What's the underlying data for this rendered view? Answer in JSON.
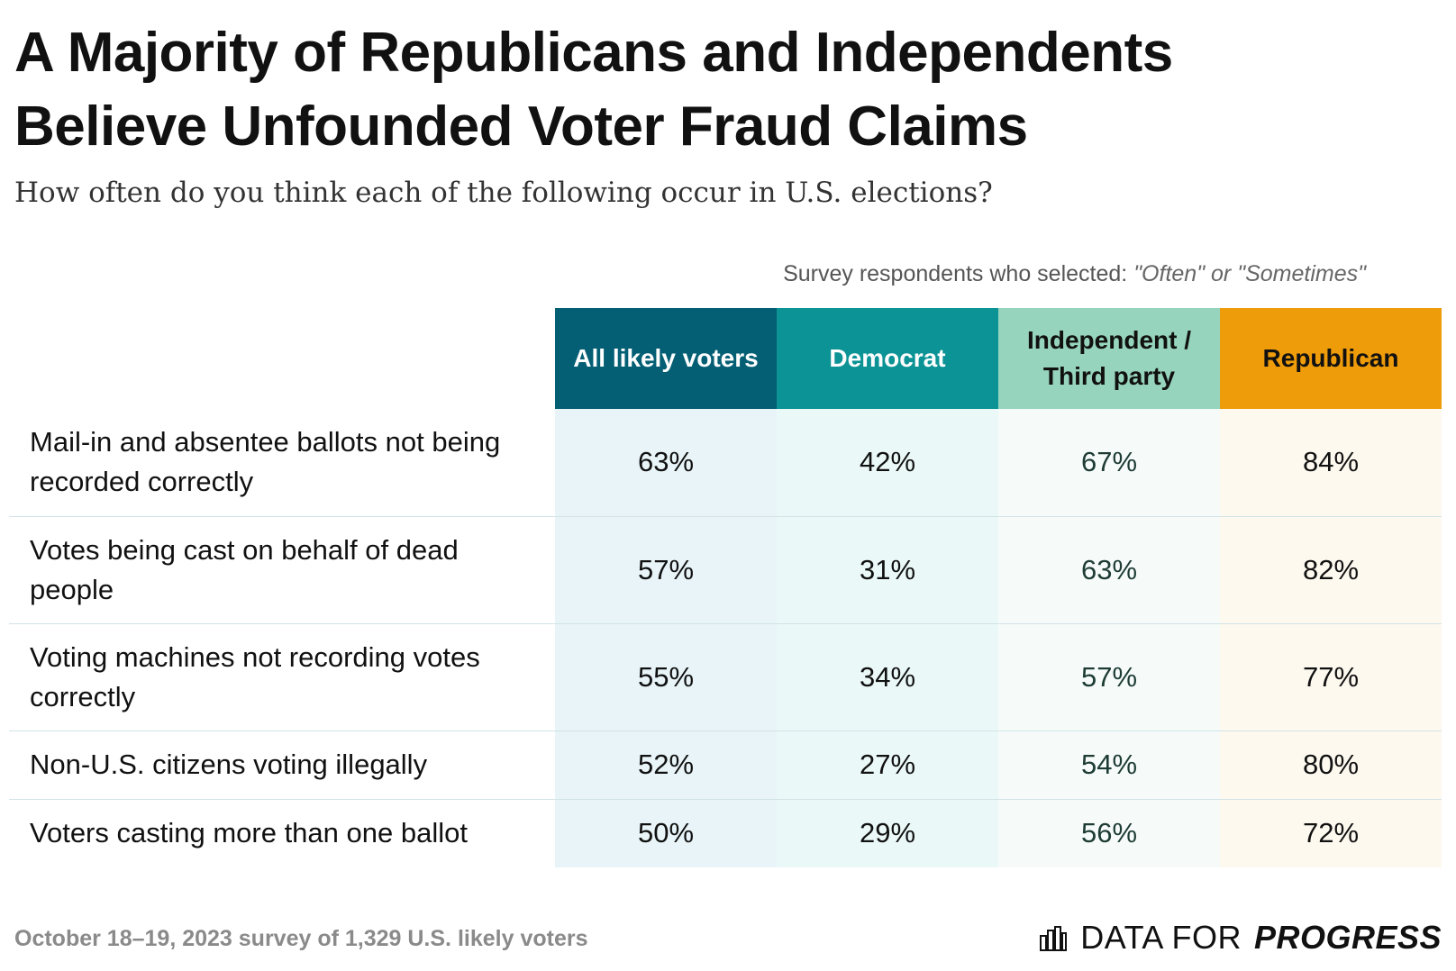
{
  "title": {
    "line1": "A Majority of Republicans and Independents",
    "line2": "Believe Unfounded Voter Fraud Claims"
  },
  "subtitle": "How often do you think each of the following occur in U.S. elections?",
  "caption": {
    "prefix": "Survey respondents who selected:",
    "emphasis": "\"Often\" or \"Sometimes\""
  },
  "footer": {
    "note": "October 18–19, 2023 survey of 1,329 U.S. likely voters",
    "brand_light": "DATA FOR",
    "brand_bold": "PROGRESS",
    "brand_icon": "bar-chart-icon"
  },
  "colors": {
    "all_head": "#055f74",
    "dem_head": "#0b9395",
    "ind_head": "#96d4bd",
    "rep_head": "#ef9c0a",
    "all_cell": "#e8f4f8",
    "dem_cell": "#ebf8f8",
    "ind_cell": "#f6fbfa",
    "rep_cell": "#fdf9ef",
    "ind_text": "#1e3c34"
  },
  "chart_data": {
    "type": "table",
    "title": "A Majority of Republicans and Independents Believe Unfounded Voter Fraud Claims",
    "columns": [
      "All likely voters",
      "Democrat",
      "Independent / Third party",
      "Republican"
    ],
    "rows": [
      {
        "label": "Mail-in and absentee ballots not being recorded correctly",
        "values": [
          "63%",
          "42%",
          "67%",
          "84%"
        ]
      },
      {
        "label": "Votes being cast on behalf of dead people",
        "values": [
          "57%",
          "31%",
          "63%",
          "82%"
        ]
      },
      {
        "label": "Voting machines not recording votes correctly",
        "values": [
          "55%",
          "34%",
          "57%",
          "77%"
        ]
      },
      {
        "label": "Non-U.S. citizens voting illegally",
        "values": [
          "52%",
          "27%",
          "54%",
          "80%"
        ]
      },
      {
        "label": "Voters casting more than one ballot",
        "values": [
          "50%",
          "29%",
          "56%",
          "72%"
        ]
      }
    ]
  }
}
